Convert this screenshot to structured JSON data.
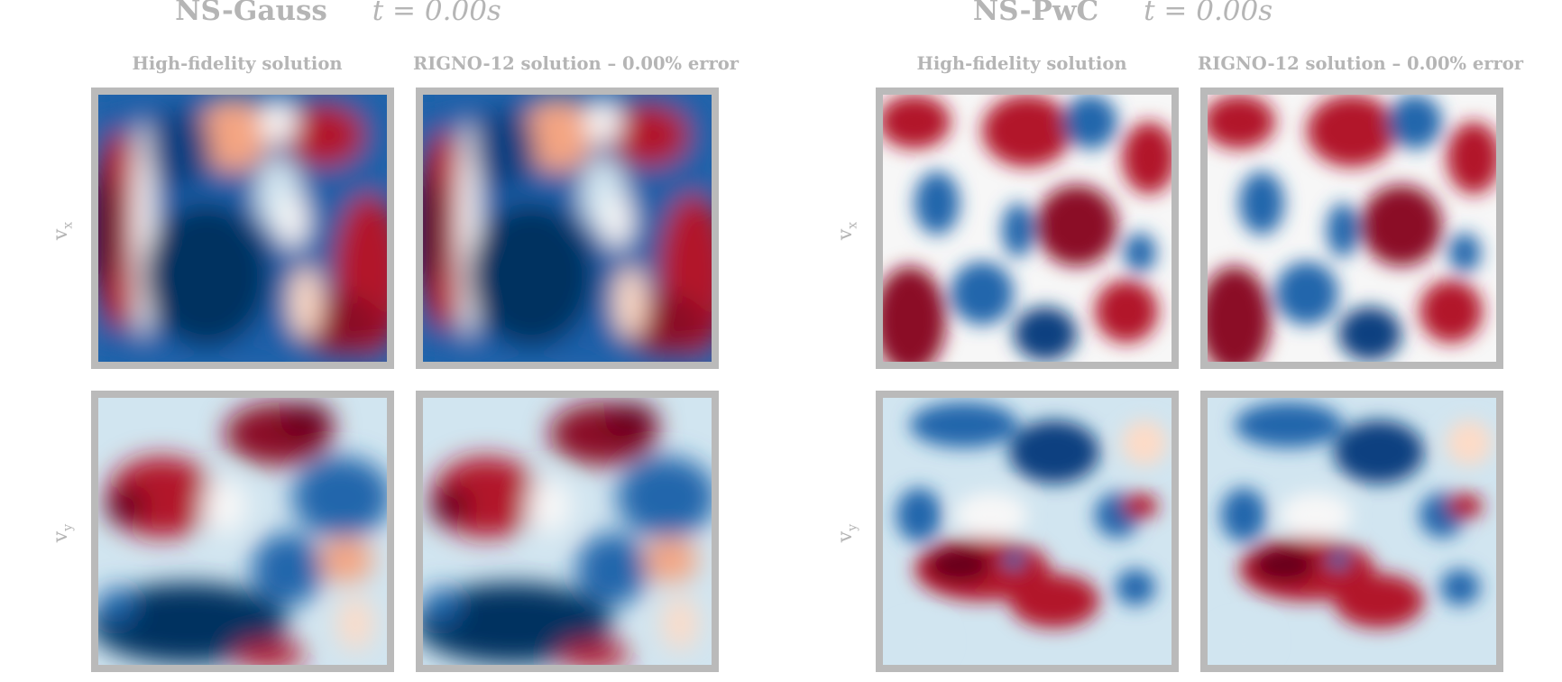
{
  "groups": [
    {
      "name": "NS-Gauss",
      "time": "t = 0.00s",
      "col_titles": [
        "High-fidelity solution",
        "RIGNO-12 solution – 0.00% error"
      ],
      "row_labels": [
        {
          "base": "v",
          "sub": "x"
        },
        {
          "base": "v",
          "sub": "y"
        }
      ]
    },
    {
      "name": "NS-PwC",
      "time": "t = 0.00s",
      "col_titles": [
        "High-fidelity solution",
        "RIGNO-12 solution – 0.00% error"
      ],
      "row_labels": [
        {
          "base": "v",
          "sub": "x"
        },
        {
          "base": "v",
          "sub": "y"
        }
      ]
    }
  ],
  "colors": {
    "frame": "#bababa",
    "negative": "#053061",
    "mid_negative": "#2166ac",
    "neutral": "#f7f7f7",
    "mid_positive": "#b2182b",
    "positive": "#67001f",
    "text": "#b5b5b5"
  }
}
